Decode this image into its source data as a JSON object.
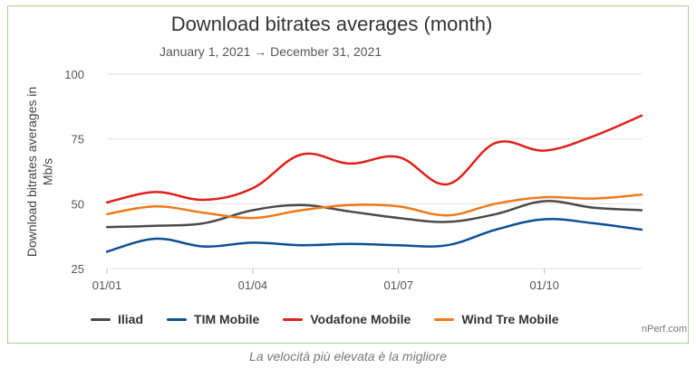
{
  "chart_data": {
    "type": "line",
    "title": "Download bitrates averages (month)",
    "subtitle": "January 1, 2021 → December 31, 2021",
    "ylabel": "Download bitrates averages in Mb/s",
    "xlabel": "",
    "ylim": [
      25,
      100
    ],
    "yticks": [
      25,
      50,
      75,
      100
    ],
    "x": [
      "2021-01",
      "2021-02",
      "2021-03",
      "2021-04",
      "2021-05",
      "2021-06",
      "2021-07",
      "2021-08",
      "2021-09",
      "2021-10",
      "2021-11",
      "2021-12"
    ],
    "xtick_labels": [
      "01/01",
      "01/04",
      "01/07",
      "01/10"
    ],
    "xtick_months": [
      "2021-01",
      "2021-04",
      "2021-07",
      "2021-10"
    ],
    "grid": true,
    "legend_position": "bottom",
    "series": [
      {
        "name": "Iliad",
        "color": "#4a4a4a",
        "values": [
          41,
          41.5,
          42.5,
          47.5,
          49.5,
          47,
          44.5,
          43,
          46,
          51,
          48.5,
          47.5
        ]
      },
      {
        "name": "TIM Mobile",
        "color": "#0d4f94",
        "values": [
          31.5,
          36.5,
          33.5,
          35,
          34,
          34.5,
          34,
          34,
          40,
          44,
          42.5,
          40
        ]
      },
      {
        "name": "Vodafone Mobile",
        "color": "#e0201a",
        "values": [
          50.5,
          54.5,
          51.5,
          56,
          69,
          65.5,
          68,
          57.5,
          73.5,
          70.5,
          76,
          84
        ]
      },
      {
        "name": "Wind Tre Mobile",
        "color": "#f07918",
        "values": [
          46,
          49,
          46.5,
          44.5,
          47.5,
          49.5,
          49,
          45.5,
          50,
          52.5,
          52,
          53.5
        ]
      }
    ]
  },
  "watermark": "nPerf.com",
  "caption": "La velocità più elevata è la migliore"
}
